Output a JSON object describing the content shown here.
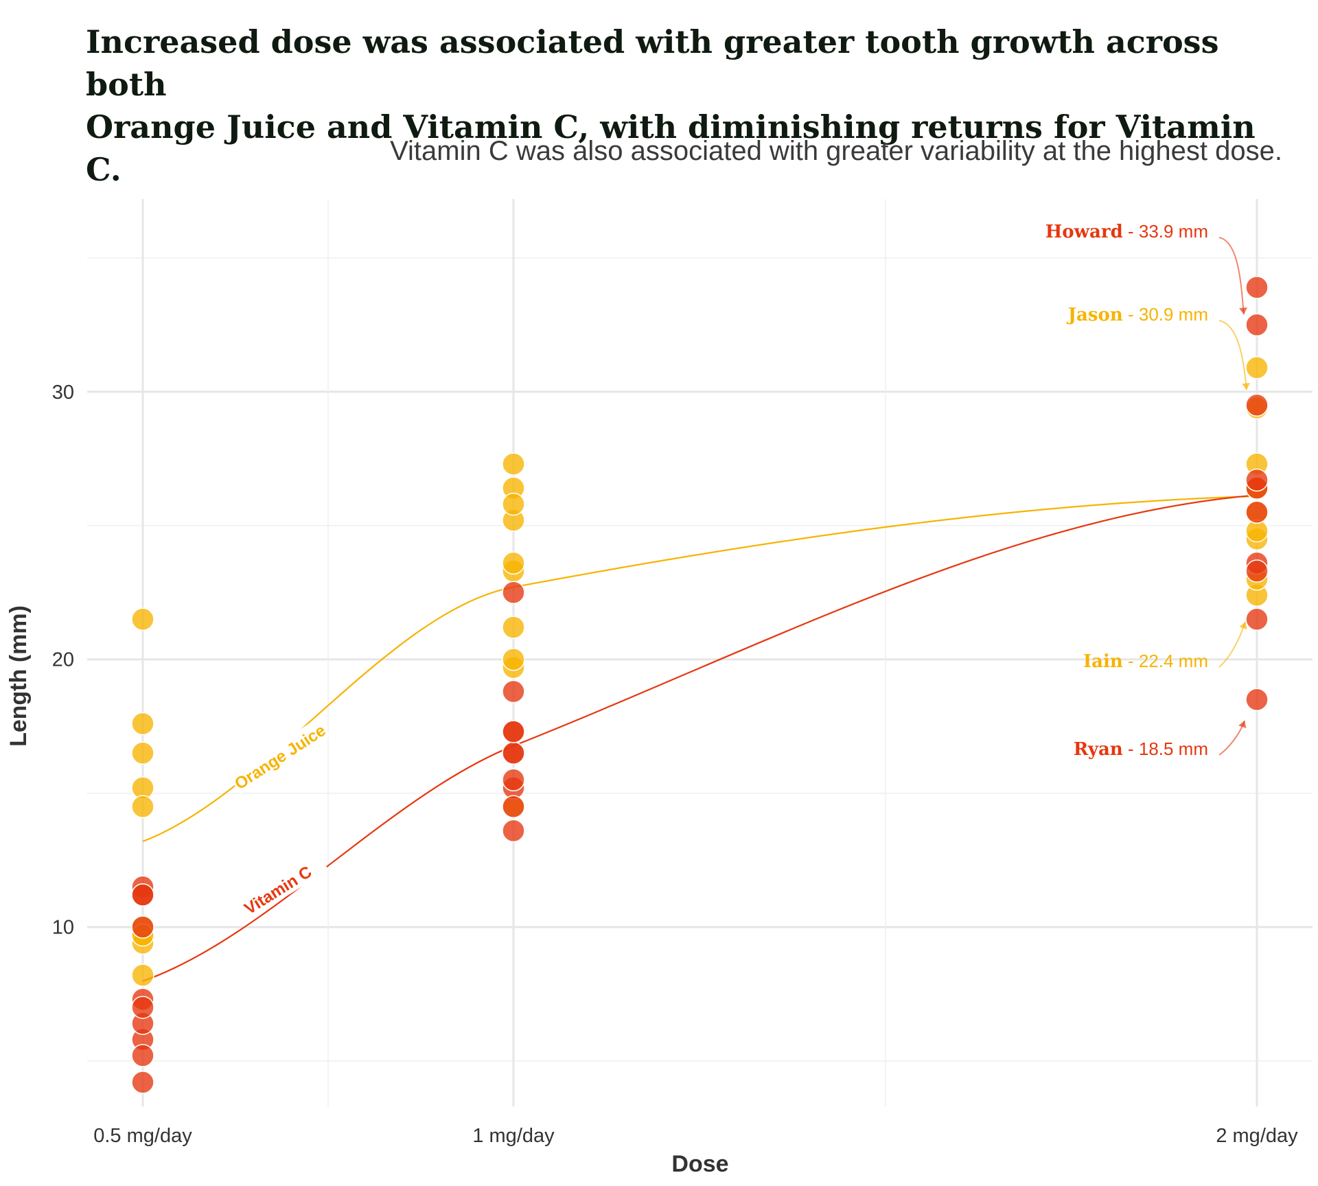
{
  "title_line1": "Increased dose was associated with greater tooth growth across both",
  "title_line2": "Orange Juice and Vitamin C, with diminishing returns for Vitamin C.",
  "subtitle": "Vitamin C was also associated with greater variability at the highest dose.",
  "chart_data": {
    "type": "scatter",
    "xlabel": "Dose",
    "ylabel": "Length (mm)",
    "categories": [
      "0.5 mg/day",
      "1 mg/day",
      "2 mg/day"
    ],
    "x_values": [
      0.5,
      1,
      2
    ],
    "ylim": [
      3.3,
      37.2
    ],
    "yticks": [
      10,
      20,
      30
    ],
    "grid": true,
    "colors": {
      "oj": "#f7b300",
      "vc": "#e6370f"
    },
    "series": [
      {
        "name": "Orange Juice",
        "color": "#f7b300",
        "points": [
          {
            "x": 0.5,
            "y": 15.2
          },
          {
            "x": 0.5,
            "y": 21.5
          },
          {
            "x": 0.5,
            "y": 17.6
          },
          {
            "x": 0.5,
            "y": 9.7
          },
          {
            "x": 0.5,
            "y": 14.5
          },
          {
            "x": 0.5,
            "y": 10.0
          },
          {
            "x": 0.5,
            "y": 8.2
          },
          {
            "x": 0.5,
            "y": 9.4
          },
          {
            "x": 0.5,
            "y": 16.5
          },
          {
            "x": 0.5,
            "y": 9.7
          },
          {
            "x": 1,
            "y": 19.7
          },
          {
            "x": 1,
            "y": 23.3
          },
          {
            "x": 1,
            "y": 23.6
          },
          {
            "x": 1,
            "y": 26.4
          },
          {
            "x": 1,
            "y": 20.0
          },
          {
            "x": 1,
            "y": 25.2
          },
          {
            "x": 1,
            "y": 25.8
          },
          {
            "x": 1,
            "y": 21.2
          },
          {
            "x": 1,
            "y": 14.5
          },
          {
            "x": 1,
            "y": 27.3
          },
          {
            "x": 2,
            "y": 25.5
          },
          {
            "x": 2,
            "y": 26.4
          },
          {
            "x": 2,
            "y": 22.4
          },
          {
            "x": 2,
            "y": 24.5
          },
          {
            "x": 2,
            "y": 24.8
          },
          {
            "x": 2,
            "y": 30.9
          },
          {
            "x": 2,
            "y": 26.4
          },
          {
            "x": 2,
            "y": 27.3
          },
          {
            "x": 2,
            "y": 29.4
          },
          {
            "x": 2,
            "y": 23.0
          }
        ],
        "curve": [
          {
            "x": 0.5,
            "y": 13.2
          },
          {
            "x": 1,
            "y": 22.7
          },
          {
            "x": 2,
            "y": 26.1
          }
        ]
      },
      {
        "name": "Vitamin C",
        "color": "#e6370f",
        "points": [
          {
            "x": 0.5,
            "y": 4.2
          },
          {
            "x": 0.5,
            "y": 11.5
          },
          {
            "x": 0.5,
            "y": 7.3
          },
          {
            "x": 0.5,
            "y": 5.8
          },
          {
            "x": 0.5,
            "y": 6.4
          },
          {
            "x": 0.5,
            "y": 10.0
          },
          {
            "x": 0.5,
            "y": 11.2
          },
          {
            "x": 0.5,
            "y": 11.2
          },
          {
            "x": 0.5,
            "y": 5.2
          },
          {
            "x": 0.5,
            "y": 7.0
          },
          {
            "x": 1,
            "y": 16.5
          },
          {
            "x": 1,
            "y": 16.5
          },
          {
            "x": 1,
            "y": 15.2
          },
          {
            "x": 1,
            "y": 17.3
          },
          {
            "x": 1,
            "y": 22.5
          },
          {
            "x": 1,
            "y": 17.3
          },
          {
            "x": 1,
            "y": 13.6
          },
          {
            "x": 1,
            "y": 14.5
          },
          {
            "x": 1,
            "y": 18.8
          },
          {
            "x": 1,
            "y": 15.5
          },
          {
            "x": 2,
            "y": 23.6
          },
          {
            "x": 2,
            "y": 18.5
          },
          {
            "x": 2,
            "y": 33.9
          },
          {
            "x": 2,
            "y": 25.5
          },
          {
            "x": 2,
            "y": 26.4
          },
          {
            "x": 2,
            "y": 32.5
          },
          {
            "x": 2,
            "y": 26.7
          },
          {
            "x": 2,
            "y": 21.5
          },
          {
            "x": 2,
            "y": 23.3
          },
          {
            "x": 2,
            "y": 29.5
          }
        ],
        "curve": [
          {
            "x": 0.5,
            "y": 7.98
          },
          {
            "x": 1,
            "y": 16.77
          },
          {
            "x": 2,
            "y": 26.14
          }
        ]
      }
    ],
    "annotations": [
      {
        "name": "Howard",
        "value": "33.9 mm",
        "series": "Vitamin C",
        "x": 2,
        "y": 33.9
      },
      {
        "name": "Jason",
        "value": "30.9 mm",
        "series": "Orange Juice",
        "x": 2,
        "y": 30.9
      },
      {
        "name": "Iain",
        "value": "22.4 mm",
        "series": "Orange Juice",
        "x": 2,
        "y": 22.4
      },
      {
        "name": "Ryan",
        "value": "18.5 mm",
        "series": "Vitamin C",
        "x": 2,
        "y": 18.5
      }
    ]
  }
}
